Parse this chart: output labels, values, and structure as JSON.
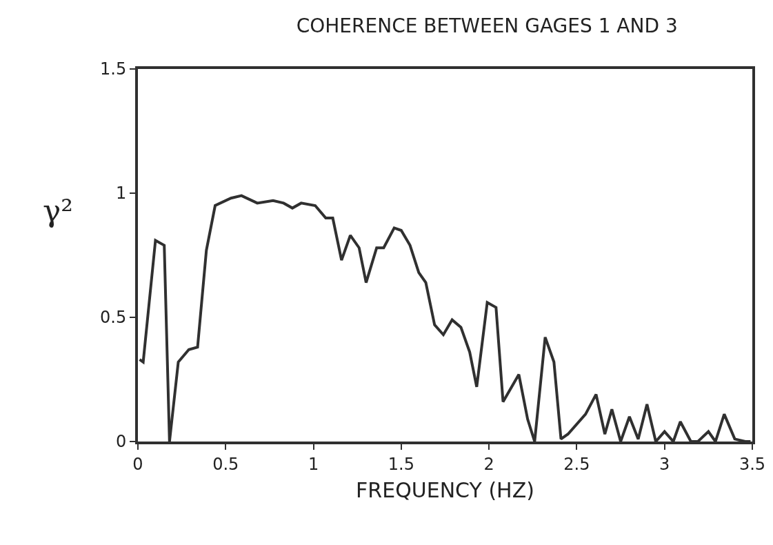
{
  "chart_data": {
    "type": "line",
    "title": "COHERENCE BETWEEN GAGES 1 AND 3",
    "xlabel": "FREQUENCY (HZ)",
    "ylabel": "γ²",
    "x": [
      0.01,
      0.03,
      0.1,
      0.15,
      0.18,
      0.23,
      0.29,
      0.34,
      0.39,
      0.44,
      0.53,
      0.59,
      0.68,
      0.77,
      0.83,
      0.88,
      0.93,
      1.01,
      1.07,
      1.11,
      1.16,
      1.21,
      1.26,
      1.3,
      1.36,
      1.4,
      1.46,
      1.5,
      1.55,
      1.6,
      1.64,
      1.69,
      1.74,
      1.79,
      1.84,
      1.89,
      1.93,
      1.99,
      2.04,
      2.08,
      2.17,
      2.22,
      2.26,
      2.32,
      2.37,
      2.41,
      2.45,
      2.55,
      2.61,
      2.66,
      2.7,
      2.75,
      2.8,
      2.85,
      2.9,
      2.95,
      3.0,
      3.05,
      3.09,
      3.15,
      3.19,
      3.25,
      3.29,
      3.34,
      3.4,
      3.46,
      3.49
    ],
    "series": [
      {
        "color": "#303030",
        "values": [
          0.33,
          0.32,
          0.81,
          0.79,
          0.0,
          0.32,
          0.37,
          0.38,
          0.77,
          0.95,
          0.98,
          0.99,
          0.96,
          0.97,
          0.96,
          0.94,
          0.96,
          0.95,
          0.9,
          0.9,
          0.73,
          0.83,
          0.78,
          0.64,
          0.78,
          0.78,
          0.86,
          0.85,
          0.79,
          0.68,
          0.64,
          0.47,
          0.43,
          0.49,
          0.46,
          0.36,
          0.22,
          0.56,
          0.54,
          0.16,
          0.27,
          0.09,
          0.0,
          0.42,
          0.32,
          0.01,
          0.03,
          0.11,
          0.19,
          0.03,
          0.13,
          0.0,
          0.1,
          0.01,
          0.15,
          0.0,
          0.04,
          0.0,
          0.08,
          0.0,
          0.0,
          0.04,
          0.0,
          0.11,
          0.01,
          0.0,
          0.0
        ]
      }
    ],
    "xlim": [
      0,
      3.5
    ],
    "xticks": [
      0,
      0.5,
      1,
      1.5,
      2,
      2.5,
      3,
      3.5
    ],
    "ylim": [
      0,
      1.5
    ],
    "yticks": [
      0,
      0.5,
      1,
      1.5
    ],
    "grid": false,
    "marker": "none",
    "line_style": "solid"
  }
}
